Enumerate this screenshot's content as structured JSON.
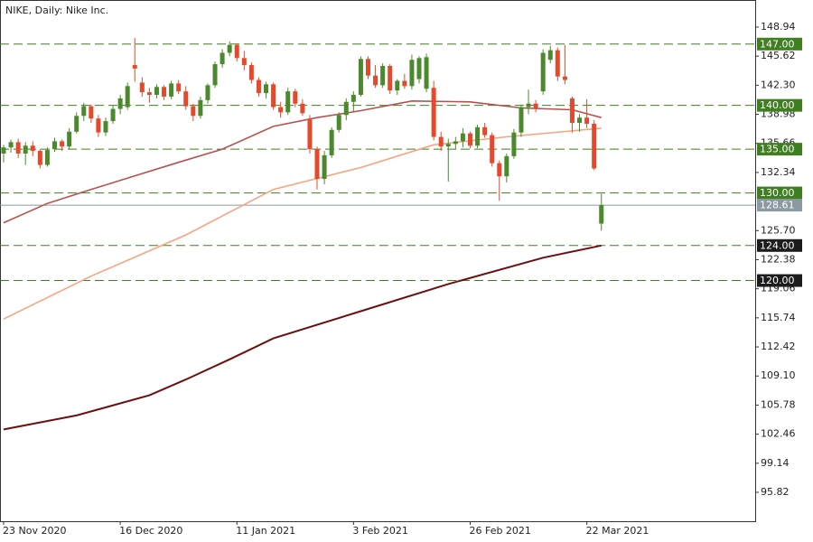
{
  "chart_data": {
    "type": "candlestick",
    "title": "NIKE, Daily:  Nike Inc.",
    "categories": [
      "23 Nov 2020",
      null,
      null,
      null,
      null,
      null,
      null,
      null,
      null,
      null,
      null,
      null,
      null,
      null,
      null,
      null,
      "16 Dec 2020",
      null,
      null,
      null,
      null,
      null,
      null,
      null,
      null,
      null,
      null,
      null,
      null,
      null,
      null,
      null,
      "11 Jan 2021",
      null,
      null,
      null,
      null,
      null,
      null,
      null,
      null,
      null,
      null,
      null,
      null,
      null,
      null,
      null,
      "3 Feb 2021",
      null,
      null,
      null,
      null,
      null,
      null,
      null,
      null,
      null,
      null,
      null,
      null,
      null,
      null,
      null,
      "26 Feb 2021",
      null,
      null,
      null,
      null,
      null,
      null,
      null,
      null,
      null,
      null,
      null,
      null,
      null,
      null,
      null,
      "22 Mar 2021",
      null,
      null
    ],
    "open": [
      134.5,
      135.2,
      135.8,
      134.5,
      135.4,
      134.8,
      133.2,
      135.0,
      135.9,
      135.3,
      137.0,
      138.8,
      139.9,
      138.5,
      136.9,
      138.2,
      139.6,
      139.8,
      144.6,
      142.6,
      141.5,
      141.2,
      142.1,
      141.0,
      142.5,
      141.6,
      139.9,
      138.8,
      140.6,
      142.3,
      144.7,
      146.0,
      146.9,
      145.4,
      144.6,
      142.9,
      141.4,
      142.4,
      139.8,
      139.2,
      141.6,
      140.2,
      138.4,
      135.0,
      131.6,
      134.3,
      137.2,
      138.9,
      140.4,
      141.2,
      145.3,
      143.4,
      142.3,
      144.5,
      141.7,
      142.8,
      142.2,
      143.0,
      141.9,
      142.0,
      136.4,
      135.3,
      135.6,
      135.9,
      136.8,
      135.4,
      137.5,
      136.6,
      133.4,
      131.9,
      134.2,
      136.9,
      139.8,
      140.2,
      141.6,
      145.2,
      146.3,
      143.3,
      140.8,
      138.0,
      138.6,
      137.9,
      126.5
    ],
    "high": [
      135.5,
      136.1,
      136.2,
      135.8,
      135.9,
      135.0,
      135.2,
      136.3,
      136.1,
      137.4,
      139.2,
      140.3,
      140.1,
      138.9,
      138.6,
      140.0,
      141.2,
      142.6,
      147.7,
      143.2,
      142.0,
      142.4,
      142.3,
      142.8,
      142.9,
      142.2,
      140.2,
      141.0,
      142.5,
      145.0,
      146.4,
      147.3,
      147.1,
      146.2,
      144.9,
      143.2,
      142.7,
      142.6,
      140.4,
      142.0,
      141.9,
      140.7,
      138.9,
      135.3,
      134.8,
      137.5,
      139.2,
      140.8,
      141.6,
      145.6,
      145.6,
      144.6,
      144.8,
      144.7,
      143.0,
      143.6,
      145.8,
      145.6,
      145.9,
      142.8,
      137.0,
      136.2,
      136.4,
      137.4,
      137.0,
      137.8,
      138.0,
      136.9,
      133.7,
      134.5,
      137.3,
      140.1,
      141.8,
      140.6,
      146.4,
      146.8,
      146.6,
      146.9,
      141.0,
      139.0,
      140.7,
      138.3,
      129.9
    ],
    "low": [
      133.5,
      134.6,
      134.0,
      133.2,
      134.2,
      132.8,
      133.0,
      134.7,
      134.8,
      135.0,
      136.8,
      138.2,
      138.0,
      136.4,
      136.5,
      137.9,
      139.0,
      139.5,
      142.7,
      141.0,
      140.3,
      140.8,
      140.6,
      140.7,
      141.3,
      139.5,
      138.2,
      138.5,
      140.2,
      142.0,
      144.3,
      145.6,
      145.0,
      144.0,
      142.5,
      141.0,
      140.8,
      139.5,
      138.6,
      138.9,
      139.8,
      138.8,
      134.5,
      130.4,
      131.0,
      134.0,
      136.9,
      138.3,
      139.2,
      141.0,
      143.0,
      142.0,
      142.0,
      141.3,
      141.2,
      141.9,
      141.8,
      142.5,
      141.5,
      136.0,
      134.8,
      131.3,
      135.0,
      135.2,
      135.1,
      135.1,
      136.3,
      133.0,
      129.1,
      131.2,
      133.9,
      136.4,
      139.0,
      139.2,
      141.2,
      144.8,
      142.8,
      142.4,
      136.9,
      137.0,
      137.4,
      132.6,
      125.7
    ],
    "close": [
      135.2,
      135.8,
      134.5,
      135.4,
      134.8,
      133.2,
      134.9,
      135.9,
      135.3,
      137.0,
      138.8,
      139.9,
      138.5,
      136.9,
      138.2,
      139.6,
      140.8,
      142.2,
      144.2,
      141.5,
      141.2,
      142.1,
      141.0,
      142.5,
      141.6,
      139.9,
      138.8,
      140.6,
      142.3,
      144.7,
      146.0,
      146.9,
      145.4,
      144.6,
      142.9,
      141.4,
      142.4,
      139.8,
      139.2,
      141.6,
      140.2,
      139.1,
      135.0,
      131.6,
      134.3,
      137.2,
      138.9,
      140.4,
      141.2,
      145.3,
      143.4,
      142.3,
      144.5,
      141.7,
      142.8,
      142.2,
      145.2,
      145.4,
      145.5,
      136.4,
      135.3,
      135.6,
      135.9,
      136.8,
      135.4,
      137.5,
      136.6,
      133.4,
      131.9,
      134.2,
      136.9,
      139.8,
      140.2,
      139.6,
      146.0,
      146.3,
      143.3,
      142.9,
      138.0,
      138.6,
      137.9,
      132.8,
      128.61
    ],
    "up_color": "#4b8a2c",
    "down_color": "#e5492b",
    "lines": [
      {
        "color": "#b5524f",
        "x": [
          0,
          6,
          12,
          24,
          30,
          37,
          43,
          49,
          56,
          64,
          71,
          78,
          82
        ],
        "values": [
          126.6,
          128.8,
          130.4,
          133.5,
          135.0,
          137.6,
          138.6,
          139.4,
          140.5,
          140.4,
          139.7,
          139.5,
          138.6
        ]
      },
      {
        "color": "#f5a47f",
        "x": [
          0,
          12,
          25,
          37,
          49,
          59,
          69,
          82
        ],
        "values": [
          115.6,
          120.5,
          125.2,
          130.4,
          132.9,
          135.5,
          136.4,
          137.4
        ]
      },
      {
        "color": "#6b1010",
        "x": [
          0,
          10,
          20,
          25,
          31,
          37,
          49,
          61,
          74,
          82
        ],
        "values": [
          103.0,
          104.6,
          106.9,
          108.7,
          111.0,
          113.4,
          116.5,
          119.6,
          122.6,
          124.0
        ]
      }
    ],
    "levels": [
      {
        "value": 147,
        "label": "147.00",
        "color": "#3f7f22"
      },
      {
        "value": 140,
        "label": "140.00",
        "color": "#3f7f22"
      },
      {
        "value": 135,
        "label": "135.00",
        "color": "#3f7f22"
      },
      {
        "value": 130,
        "label": "130.00",
        "color": "#3f7f22"
      },
      {
        "value": 124,
        "label": "124.00",
        "color": "#1c1c1c"
      },
      {
        "value": 120,
        "label": "120.00",
        "color": "#1c1c1c"
      }
    ],
    "level_line_color": "#3f7f22",
    "price_line": {
      "value": 128.61,
      "label": "128.61",
      "color": "#8a9aa0"
    },
    "ylim": [
      92.52,
      152.03
    ],
    "yticks": [
      148.94,
      145.62,
      {
        "value": 142.3,
        "label": "142.30"
      },
      138.98,
      135.66,
      132.34,
      {
        "value": 125.7,
        "label": "125.70"
      },
      122.38,
      119.06,
      115.74,
      112.42,
      {
        "value": 109.1,
        "label": "109.10"
      },
      105.78,
      102.46,
      99.14,
      95.82
    ]
  }
}
